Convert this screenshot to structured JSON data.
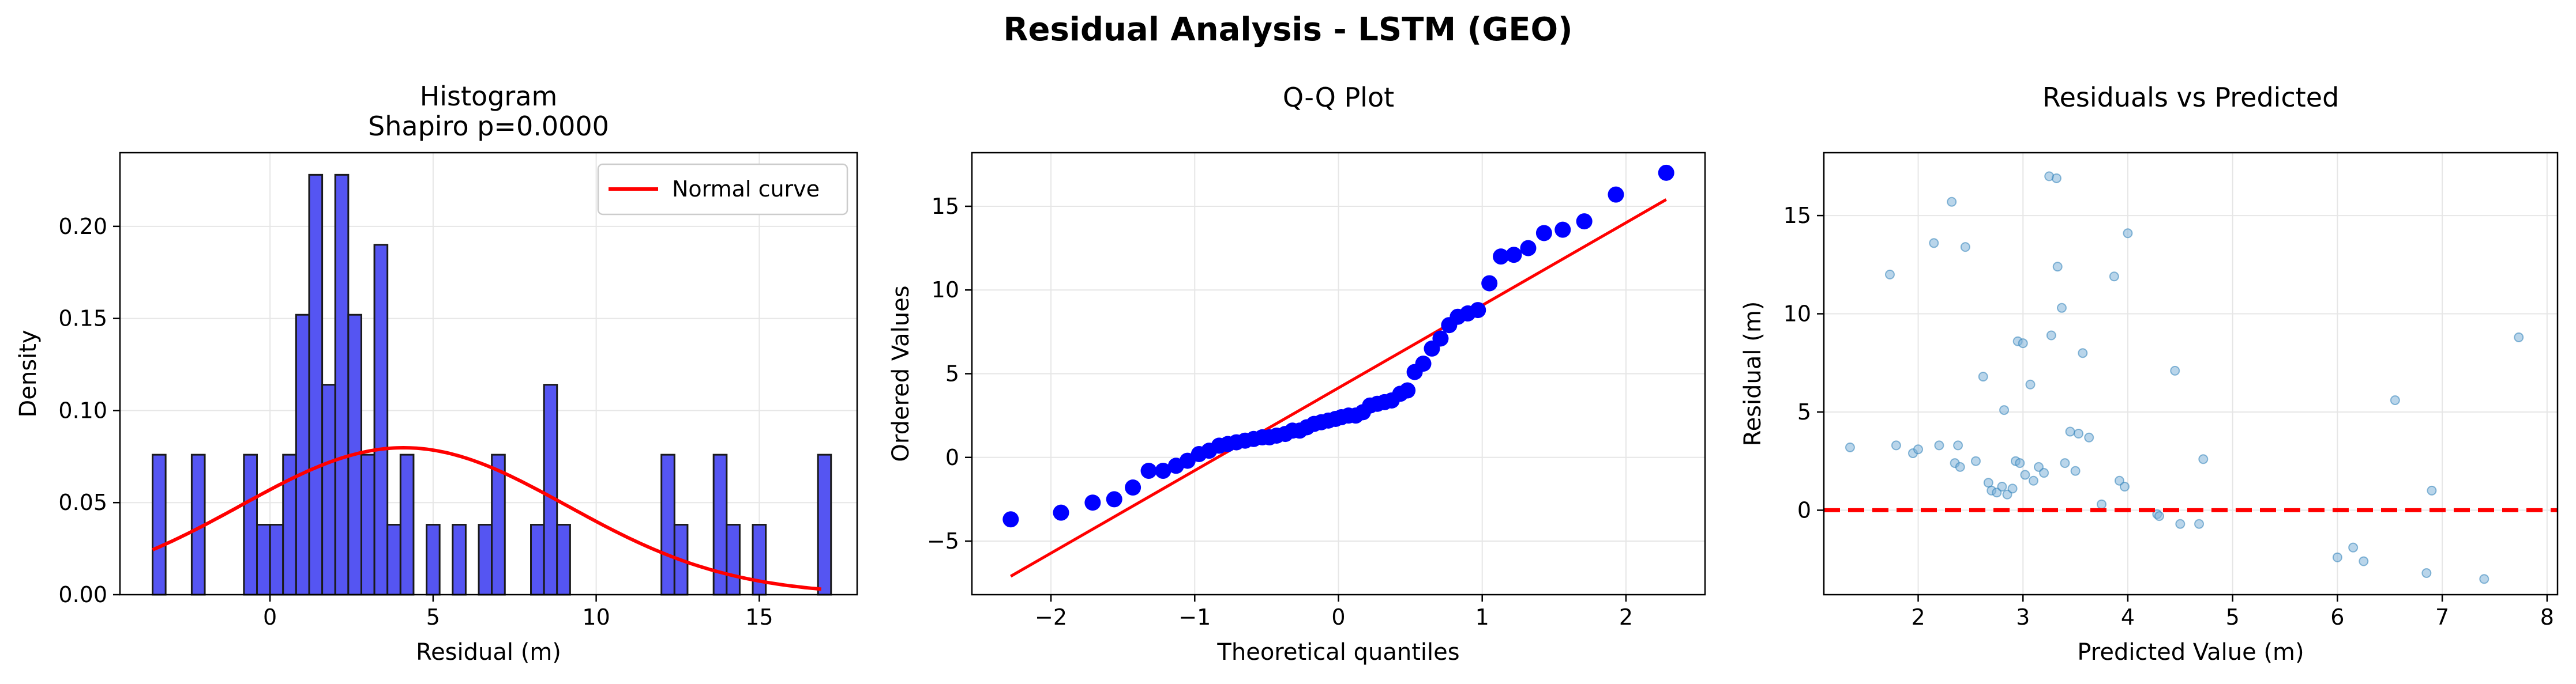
{
  "figure": {
    "suptitle": "Residual Analysis - LSTM (GEO)"
  },
  "colors": {
    "hist_bar": "#5555f2",
    "hist_edge": "#1a1a1a",
    "normal_curve": "#ff0000",
    "qq_points": "#0000ff",
    "qq_line": "#ff0000",
    "scatter_points": "#7fb2d9",
    "zero_line": "#ff0000",
    "grid": "#e6e6e6"
  },
  "chart_data": [
    {
      "type": "bar",
      "subtype": "histogram",
      "title": "Histogram\nShapiro p=0.0000",
      "xlabel": "Residual (m)",
      "ylabel": "Density",
      "xlim": [
        -4.6,
        18.0
      ],
      "ylim": [
        0,
        0.24
      ],
      "xticks": [
        0,
        5,
        10,
        15
      ],
      "yticks": [
        0.0,
        0.05,
        0.1,
        0.15,
        0.2
      ],
      "yticklabels": [
        "0.00",
        "0.05",
        "0.10",
        "0.15",
        "0.20"
      ],
      "grid": true,
      "legend": {
        "position": "top-right",
        "entries": [
          "Normal curve"
        ]
      },
      "bins": [
        [
          -3.6,
          0.076
        ],
        [
          -3.2,
          0
        ],
        [
          -2.8,
          0
        ],
        [
          -2.4,
          0.076
        ],
        [
          -2.0,
          0
        ],
        [
          -1.6,
          0
        ],
        [
          -1.2,
          0
        ],
        [
          -0.8,
          0.076
        ],
        [
          -0.4,
          0.038
        ],
        [
          0.0,
          0.038
        ],
        [
          0.4,
          0.076
        ],
        [
          0.8,
          0.152
        ],
        [
          1.2,
          0.228
        ],
        [
          1.6,
          0.114
        ],
        [
          2.0,
          0.228
        ],
        [
          2.4,
          0.152
        ],
        [
          2.8,
          0.076
        ],
        [
          3.2,
          0.19
        ],
        [
          3.6,
          0.038
        ],
        [
          4.0,
          0.076
        ],
        [
          4.4,
          0
        ],
        [
          4.8,
          0.038
        ],
        [
          5.2,
          0
        ],
        [
          5.6,
          0.038
        ],
        [
          6.0,
          0
        ],
        [
          6.4,
          0.038
        ],
        [
          6.8,
          0.076
        ],
        [
          7.2,
          0
        ],
        [
          7.6,
          0
        ],
        [
          8.0,
          0.038
        ],
        [
          8.4,
          0.114
        ],
        [
          8.8,
          0.038
        ],
        [
          9.2,
          0
        ],
        [
          9.6,
          0
        ],
        [
          10.0,
          0
        ],
        [
          10.4,
          0
        ],
        [
          10.8,
          0
        ],
        [
          11.2,
          0
        ],
        [
          11.6,
          0
        ],
        [
          12.0,
          0.076
        ],
        [
          12.4,
          0.038
        ],
        [
          12.8,
          0
        ],
        [
          13.2,
          0
        ],
        [
          13.6,
          0.076
        ],
        [
          14.0,
          0.038
        ],
        [
          14.4,
          0
        ],
        [
          14.8,
          0.038
        ],
        [
          15.2,
          0
        ],
        [
          15.6,
          0
        ],
        [
          16.0,
          0
        ],
        [
          16.4,
          0
        ],
        [
          16.8,
          0.076
        ]
      ],
      "bin_width": 0.4,
      "normal_curve": {
        "name": "Normal curve",
        "mean": 4.1,
        "std": 5.0
      }
    },
    {
      "type": "scatter",
      "subtype": "qq",
      "title": "Q-Q Plot",
      "xlabel": "Theoretical quantiles",
      "ylabel": "Ordered Values",
      "xlim": [
        -2.55,
        2.55
      ],
      "ylim": [
        -8.2,
        18.2
      ],
      "xticks": [
        -2,
        -1,
        0,
        1,
        2
      ],
      "xticklabels": [
        "−2",
        "−1",
        "0",
        "1",
        "2"
      ],
      "yticks": [
        -5,
        0,
        5,
        10,
        15
      ],
      "yticklabels": [
        "−5",
        "0",
        "5",
        "10",
        "15"
      ],
      "grid": true,
      "points": [
        [
          -2.28,
          -3.7
        ],
        [
          -1.93,
          -3.3
        ],
        [
          -1.71,
          -2.7
        ],
        [
          -1.56,
          -2.5
        ],
        [
          -1.43,
          -1.8
        ],
        [
          -1.32,
          -0.8
        ],
        [
          -1.22,
          -0.8
        ],
        [
          -1.13,
          -0.5
        ],
        [
          -1.05,
          -0.2
        ],
        [
          -0.97,
          0.2
        ],
        [
          -0.9,
          0.4
        ],
        [
          -0.83,
          0.7
        ],
        [
          -0.77,
          0.8
        ],
        [
          -0.71,
          0.9
        ],
        [
          -0.65,
          1.0
        ],
        [
          -0.59,
          1.1
        ],
        [
          -0.53,
          1.2
        ],
        [
          -0.48,
          1.2
        ],
        [
          -0.43,
          1.3
        ],
        [
          -0.37,
          1.4
        ],
        [
          -0.32,
          1.6
        ],
        [
          -0.27,
          1.6
        ],
        [
          -0.22,
          1.8
        ],
        [
          -0.17,
          2.0
        ],
        [
          -0.12,
          2.1
        ],
        [
          -0.07,
          2.2
        ],
        [
          -0.02,
          2.3
        ],
        [
          0.02,
          2.4
        ],
        [
          0.07,
          2.5
        ],
        [
          0.12,
          2.5
        ],
        [
          0.17,
          2.7
        ],
        [
          0.22,
          3.1
        ],
        [
          0.27,
          3.2
        ],
        [
          0.32,
          3.3
        ],
        [
          0.37,
          3.4
        ],
        [
          0.43,
          3.8
        ],
        [
          0.48,
          4.0
        ],
        [
          0.53,
          5.1
        ],
        [
          0.59,
          5.6
        ],
        [
          0.65,
          6.5
        ],
        [
          0.71,
          7.1
        ],
        [
          0.77,
          7.9
        ],
        [
          0.83,
          8.4
        ],
        [
          0.9,
          8.6
        ],
        [
          0.97,
          8.8
        ],
        [
          1.05,
          10.4
        ],
        [
          1.13,
          12.0
        ],
        [
          1.22,
          12.1
        ],
        [
          1.32,
          12.5
        ],
        [
          1.43,
          13.4
        ],
        [
          1.56,
          13.6
        ],
        [
          1.71,
          14.1
        ],
        [
          1.93,
          15.7
        ],
        [
          2.28,
          17.0
        ]
      ],
      "reference_line": {
        "x": [
          -2.28,
          2.28
        ],
        "y": [
          -7.1,
          15.4
        ]
      }
    },
    {
      "type": "scatter",
      "title": "Residuals vs Predicted",
      "xlabel": "Predicted Value (m)",
      "ylabel": "Residual (m)",
      "xlim": [
        1.1,
        8.1
      ],
      "ylim": [
        -4.3,
        18.2
      ],
      "xticks": [
        2,
        3,
        4,
        5,
        6,
        7,
        8
      ],
      "yticks": [
        0,
        5,
        10,
        15
      ],
      "grid": true,
      "zero_line": 0,
      "points": [
        [
          1.35,
          3.2
        ],
        [
          1.73,
          12.0
        ],
        [
          1.79,
          3.3
        ],
        [
          1.95,
          2.9
        ],
        [
          2.0,
          3.1
        ],
        [
          2.15,
          13.6
        ],
        [
          2.2,
          3.3
        ],
        [
          2.32,
          15.7
        ],
        [
          2.35,
          2.4
        ],
        [
          2.38,
          3.3
        ],
        [
          2.4,
          2.2
        ],
        [
          2.45,
          13.4
        ],
        [
          2.55,
          2.5
        ],
        [
          2.62,
          6.8
        ],
        [
          2.67,
          1.4
        ],
        [
          2.7,
          1.0
        ],
        [
          2.75,
          0.9
        ],
        [
          2.8,
          1.2
        ],
        [
          2.82,
          5.1
        ],
        [
          2.85,
          0.8
        ],
        [
          2.9,
          1.1
        ],
        [
          2.93,
          2.5
        ],
        [
          2.95,
          8.6
        ],
        [
          2.97,
          2.4
        ],
        [
          3.0,
          8.5
        ],
        [
          3.02,
          1.8
        ],
        [
          3.07,
          6.4
        ],
        [
          3.1,
          1.5
        ],
        [
          3.15,
          2.2
        ],
        [
          3.2,
          1.9
        ],
        [
          3.25,
          17.0
        ],
        [
          3.27,
          8.9
        ],
        [
          3.32,
          16.9
        ],
        [
          3.33,
          12.4
        ],
        [
          3.37,
          10.3
        ],
        [
          3.4,
          2.4
        ],
        [
          3.45,
          4.0
        ],
        [
          3.5,
          2.0
        ],
        [
          3.53,
          3.9
        ],
        [
          3.57,
          8.0
        ],
        [
          3.63,
          3.7
        ],
        [
          3.75,
          0.3
        ],
        [
          3.87,
          11.9
        ],
        [
          3.92,
          1.5
        ],
        [
          3.97,
          1.2
        ],
        [
          4.0,
          14.1
        ],
        [
          4.28,
          -0.2
        ],
        [
          4.3,
          -0.3
        ],
        [
          4.45,
          7.1
        ],
        [
          4.5,
          -0.7
        ],
        [
          4.68,
          -0.7
        ],
        [
          4.72,
          2.6
        ],
        [
          6.0,
          -2.4
        ],
        [
          6.15,
          -1.9
        ],
        [
          6.25,
          -2.6
        ],
        [
          6.55,
          5.6
        ],
        [
          6.85,
          -3.2
        ],
        [
          6.9,
          1.0
        ],
        [
          7.4,
          -3.5
        ],
        [
          7.73,
          8.8
        ]
      ]
    }
  ]
}
